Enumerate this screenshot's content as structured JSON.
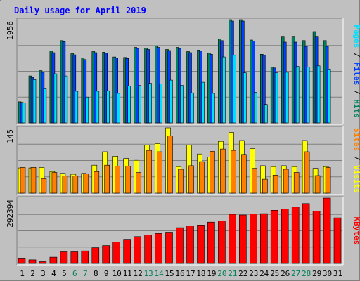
{
  "chart_data": {
    "type": "bar",
    "title": "Daily usage for April 2019",
    "days": [
      "1",
      "2",
      "3",
      "4",
      "5",
      "6",
      "7",
      "8",
      "9",
      "10",
      "11",
      "12",
      "13",
      "14",
      "15",
      "16",
      "17",
      "18",
      "19",
      "20",
      "21",
      "22",
      "23",
      "24",
      "25",
      "26",
      "27",
      "28",
      "29",
      "30",
      "31"
    ],
    "weekend_days": [
      "6",
      "7",
      "13",
      "14",
      "20",
      "21",
      "27",
      "28"
    ],
    "panels": [
      {
        "id": "hits-panel",
        "max_label": "1956",
        "max": 1956,
        "axis_labels": [
          {
            "text": "Pages",
            "color": "#00e0ff"
          },
          {
            "text": " / ",
            "color": "#000000"
          },
          {
            "text": "Files",
            "color": "#0040ff"
          },
          {
            "text": " / ",
            "color": "#000000"
          },
          {
            "text": "Hits",
            "color": "#00805c"
          }
        ],
        "series": [
          {
            "name": "Hits",
            "color": "#00805c",
            "values": [
              400,
              890,
              990,
              1360,
              1560,
              1310,
              1230,
              1350,
              1340,
              1250,
              1240,
              1430,
              1420,
              1460,
              1390,
              1430,
              1350,
              1380,
              1320,
              1590,
              1956,
              1956,
              1570,
              1300,
              1060,
              1640,
              1640,
              1560,
              1730,
              1560,
              0
            ]
          },
          {
            "name": "Files",
            "color": "#0040ff",
            "values": [
              390,
              860,
              960,
              1330,
              1540,
              1290,
              1200,
              1330,
              1320,
              1230,
              1220,
              1410,
              1390,
              1430,
              1370,
              1410,
              1330,
              1360,
              1300,
              1560,
              1930,
              1930,
              1550,
              1280,
              1040,
              1530,
              1530,
              1450,
              1640,
              1450,
              0
            ]
          },
          {
            "name": "Pages",
            "color": "#00e0ff",
            "values": [
              380,
              820,
              660,
              930,
              890,
              600,
              490,
              600,
              610,
              560,
              700,
              710,
              750,
              740,
              810,
              710,
              570,
              770,
              560,
              1250,
              1280,
              950,
              580,
              350,
              950,
              960,
              1070,
              1060,
              1080,
              1020,
              0
            ]
          }
        ]
      },
      {
        "id": "visits-panel",
        "max_label": "145",
        "max": 145,
        "axis_labels": [
          {
            "text": "Sites",
            "color": "#ff8000"
          },
          {
            "text": " / ",
            "color": "#000000"
          },
          {
            "text": "Visits",
            "color": "#ffff00"
          }
        ],
        "series": [
          {
            "name": "Visits",
            "color": "#ffff00",
            "values": [
              56,
              56,
              57,
              48,
              44,
              42,
              44,
              62,
              92,
              82,
              77,
              73,
              107,
              110,
              145,
              59,
              107,
              87,
              80,
              115,
              135,
              117,
              99,
              61,
              59,
              61,
              59,
              117,
              55,
              59,
              0
            ]
          },
          {
            "name": "Sites",
            "color": "#ff8000",
            "values": [
              57,
              57,
              32,
              46,
              38,
              38,
              43,
              48,
              62,
              60,
              60,
              46,
              95,
              92,
              127,
              53,
              61,
              70,
              93,
              98,
              95,
              86,
              55,
              31,
              40,
              53,
              46,
              92,
              39,
              57,
              0
            ]
          }
        ]
      },
      {
        "id": "kbytes-panel",
        "max_label": "292394",
        "max": 292394,
        "axis_labels": [
          {
            "text": "KBytes",
            "color": "#ff0000"
          }
        ],
        "series": [
          {
            "name": "KBytes",
            "color": "#ff0000",
            "values": [
              24000,
              16000,
              8000,
              28000,
              52000,
              52000,
              56000,
              70000,
              80000,
              96000,
              108000,
              120000,
              128000,
              134000,
              140000,
              160000,
              168000,
              172000,
              185000,
              190000,
              220000,
              217000,
              221000,
              223000,
              238000,
              244000,
              252000,
              268000,
              235000,
              292394,
              204000
            ]
          }
        ]
      }
    ]
  },
  "colors": {
    "background": "#c0c0c0",
    "title": "#0000ff",
    "weekday_label": "#000000",
    "weekend_label": "#00805c"
  }
}
